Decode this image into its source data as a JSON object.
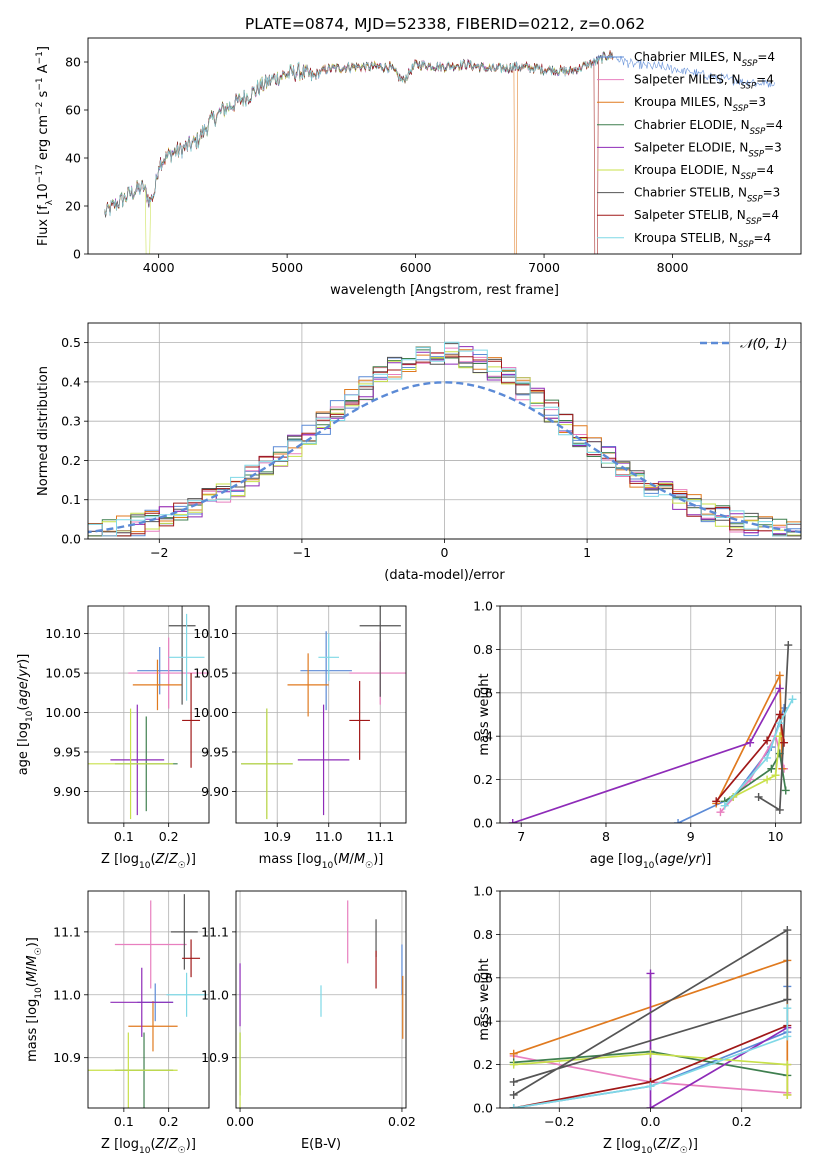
{
  "figure": {
    "title": "PLATE=0874, MJD=52338, FIBERID=0212, z=0.062"
  },
  "colors": {
    "MILES_Chabrier": "#5b8ad6",
    "MILES_Salpeter": "#e87fbf",
    "MILES_Kroupa": "#e07a1f",
    "ELODIE_Chabrier": "#3f7f4f",
    "ELODIE_Salpeter": "#8e2bb8",
    "ELODIE_Kroupa": "#c8e04a",
    "STELIB_Chabrier": "#555555",
    "STELIB_Salpeter": "#a01818",
    "STELIB_Kroupa": "#7fd8e6",
    "normal_curve": "#5b8ad6",
    "grid": "#b0b0b0"
  },
  "chart_data": [
    {
      "id": "spectrum",
      "type": "line",
      "xlabel": "wavelength [Angstrom, rest frame]",
      "ylabel": "Flux [f_λ10^-17 erg cm^-2 s^-1 A^-1]",
      "xlim": [
        3450,
        9000
      ],
      "ylim": [
        0,
        90
      ],
      "xticks": [
        4000,
        5000,
        6000,
        7000,
        8000
      ],
      "yticks": [
        0,
        20,
        40,
        60,
        80
      ],
      "grid": false,
      "legend_position": "upper right",
      "legend": [
        {
          "name": "Chabrier MILES, N_SSP=4",
          "base": "Chabrier MILES, N",
          "sub": "SSP",
          "tail": "=4",
          "color": "#5b8ad6"
        },
        {
          "name": "Salpeter MILES, N_SSP=4",
          "base": "Salpeter MILES, N",
          "sub": "SSP",
          "tail": "=4",
          "color": "#e87fbf"
        },
        {
          "name": "Kroupa MILES, N_SSP=3",
          "base": "Kroupa MILES, N",
          "sub": "SSP",
          "tail": "=3",
          "color": "#e07a1f"
        },
        {
          "name": "Chabrier ELODIE, N_SSP=4",
          "base": "Chabrier ELODIE, N",
          "sub": "SSP",
          "tail": "=4",
          "color": "#3f7f4f"
        },
        {
          "name": "Salpeter ELODIE, N_SSP=3",
          "base": "Salpeter ELODIE, N",
          "sub": "SSP",
          "tail": "=3",
          "color": "#8e2bb8"
        },
        {
          "name": "Kroupa ELODIE, N_SSP=4",
          "base": "Kroupa ELODIE, N",
          "sub": "SSP",
          "tail": "=4",
          "color": "#c8e04a"
        },
        {
          "name": "Chabrier STELIB, N_SSP=3",
          "base": "Chabrier STELIB, N",
          "sub": "SSP",
          "tail": "=3",
          "color": "#555555"
        },
        {
          "name": "Salpeter STELIB, N_SSP=4",
          "base": "Salpeter STELIB, N",
          "sub": "SSP",
          "tail": "=4",
          "color": "#a01818"
        },
        {
          "name": "Kroupa STELIB, N_SSP=4",
          "base": "Kroupa STELIB, N",
          "sub": "SSP",
          "tail": "=4",
          "color": "#7fd8e6"
        }
      ],
      "continuum": [
        [
          3580,
          17
        ],
        [
          3700,
          22
        ],
        [
          3800,
          26
        ],
        [
          3880,
          28
        ],
        [
          3930,
          22
        ],
        [
          3970,
          26
        ],
        [
          4000,
          38
        ],
        [
          4100,
          42
        ],
        [
          4200,
          44
        ],
        [
          4300,
          47
        ],
        [
          4400,
          55
        ],
        [
          4500,
          60
        ],
        [
          4600,
          63
        ],
        [
          4700,
          66
        ],
        [
          4800,
          70
        ],
        [
          4900,
          73
        ],
        [
          5000,
          75
        ],
        [
          5100,
          76
        ],
        [
          5200,
          74
        ],
        [
          5300,
          77
        ],
        [
          5500,
          78
        ],
        [
          5800,
          78
        ],
        [
          5900,
          72
        ],
        [
          6000,
          79
        ],
        [
          6200,
          78
        ],
        [
          6400,
          79
        ],
        [
          6600,
          77
        ],
        [
          6800,
          78
        ],
        [
          7000,
          77
        ],
        [
          7200,
          76
        ],
        [
          7400,
          80
        ],
        [
          7500,
          83
        ],
        [
          7700,
          79
        ],
        [
          7900,
          78
        ],
        [
          8100,
          76
        ],
        [
          8300,
          74
        ],
        [
          8500,
          72
        ],
        [
          8800,
          71
        ]
      ],
      "drops": [
        {
          "from": 3900,
          "to": 3935,
          "color": "#c8e04a"
        },
        {
          "from": 6770,
          "to": 6790,
          "color": "#e07a1f"
        },
        {
          "from": 7390,
          "to": 7420,
          "color": "#a01818"
        }
      ]
    },
    {
      "id": "residuals",
      "type": "histogram",
      "xlabel": "(data-model)/error",
      "ylabel": "Normed distribution",
      "xlim": [
        -2.5,
        2.5
      ],
      "ylim": [
        0,
        0.55
      ],
      "xticks": [
        -2,
        -1,
        0,
        1,
        2
      ],
      "yticks": [
        0.0,
        0.1,
        0.2,
        0.3,
        0.4,
        0.5
      ],
      "grid": true,
      "legend_position": "upper right",
      "legend": [
        {
          "name": "𝒩(0, 1)",
          "style": "dashed",
          "color": "#5b8ad6"
        }
      ],
      "bin_width": 0.1
    },
    {
      "id": "age_vs_Z",
      "type": "scatter",
      "xlabel": "Z [log10(Z/Z☉)]",
      "ylabel": "age [log10(age/yr)]",
      "xlim": [
        0.02,
        0.29
      ],
      "ylim": [
        9.86,
        10.135
      ],
      "xticks": [
        0.1,
        0.2
      ],
      "yticks": [
        9.9,
        9.95,
        10.0,
        10.05,
        10.1
      ],
      "grid": true,
      "points": [
        {
          "color": "#5b8ad6",
          "x": 0.18,
          "y": 10.053,
          "xerr": 0.05,
          "yerr": 0.03
        },
        {
          "color": "#e87fbf",
          "x": 0.2,
          "y": 10.05,
          "xerr": 0.09,
          "yerr": 0.045
        },
        {
          "color": "#e07a1f",
          "x": 0.175,
          "y": 10.035,
          "xerr": 0.055,
          "yerr": 0.032
        },
        {
          "color": "#3f7f4f",
          "x": 0.15,
          "y": 9.935,
          "xerr": 0.07,
          "yerr": 0.06
        },
        {
          "color": "#8e2bb8",
          "x": 0.13,
          "y": 9.94,
          "xerr": 0.06,
          "yerr": 0.07
        },
        {
          "color": "#c8e04a",
          "x": 0.115,
          "y": 9.935,
          "xerr": 0.095,
          "yerr": 0.07
        },
        {
          "color": "#555555",
          "x": 0.23,
          "y": 10.11,
          "xerr": 0.03,
          "yerr": 0.1
        },
        {
          "color": "#a01818",
          "x": 0.25,
          "y": 9.99,
          "xerr": 0.02,
          "yerr": 0.06
        },
        {
          "color": "#7fd8e6",
          "x": 0.24,
          "y": 10.07,
          "xerr": 0.04,
          "yerr": 0.055
        }
      ]
    },
    {
      "id": "age_vs_mass",
      "type": "scatter",
      "xlabel": "mass [log10(M/M☉)]",
      "ylabel": "",
      "xlim": [
        10.82,
        11.15
      ],
      "ylim": [
        9.86,
        10.135
      ],
      "xticks": [
        10.9,
        11.0,
        11.1
      ],
      "yticks": [
        9.9,
        9.95,
        10.0,
        10.05,
        10.1
      ],
      "grid": true,
      "points": [
        {
          "color": "#5b8ad6",
          "x": 10.995,
          "y": 10.053,
          "xerr": 0.05,
          "yerr": 0.05
        },
        {
          "color": "#e87fbf",
          "x": 11.1,
          "y": 10.05,
          "xerr": 0.06,
          "yerr": 0.04
        },
        {
          "color": "#e07a1f",
          "x": 10.96,
          "y": 10.035,
          "xerr": 0.04,
          "yerr": 0.04
        },
        {
          "color": "#3f7f4f",
          "x": 10.88,
          "y": 9.935,
          "xerr": 0.05,
          "yerr": 0.07
        },
        {
          "color": "#8e2bb8",
          "x": 10.99,
          "y": 9.94,
          "xerr": 0.05,
          "yerr": 0.07
        },
        {
          "color": "#c8e04a",
          "x": 10.88,
          "y": 9.935,
          "xerr": 0.05,
          "yerr": 0.07
        },
        {
          "color": "#555555",
          "x": 11.1,
          "y": 10.11,
          "xerr": 0.04,
          "yerr": 0.09
        },
        {
          "color": "#a01818",
          "x": 11.06,
          "y": 9.99,
          "xerr": 0.02,
          "yerr": 0.05
        },
        {
          "color": "#7fd8e6",
          "x": 11.0,
          "y": 10.07,
          "xerr": 0.02,
          "yerr": 0.03
        }
      ]
    },
    {
      "id": "weight_vs_age",
      "type": "line",
      "xlabel": "age [log10(age/yr)]",
      "ylabel": "mass weight",
      "xlim": [
        6.75,
        10.3
      ],
      "ylim": [
        0,
        1.0
      ],
      "xticks": [
        7,
        8,
        9,
        10
      ],
      "yticks": [
        0.0,
        0.2,
        0.4,
        0.6,
        0.8,
        1.0
      ],
      "grid": true,
      "series": [
        {
          "color": "#5b8ad6",
          "points": [
            [
              8.85,
              0.0
            ],
            [
              9.5,
              0.12
            ],
            [
              9.95,
              0.35
            ],
            [
              10.1,
              0.53
            ]
          ]
        },
        {
          "color": "#e87fbf",
          "points": [
            [
              9.35,
              0.05
            ],
            [
              9.7,
              0.2
            ],
            [
              10.0,
              0.4
            ],
            [
              10.1,
              0.25
            ]
          ]
        },
        {
          "color": "#e07a1f",
          "points": [
            [
              9.3,
              0.09
            ],
            [
              10.05,
              0.68
            ],
            [
              10.08,
              0.25
            ]
          ]
        },
        {
          "color": "#3f7f4f",
          "points": [
            [
              9.4,
              0.1
            ],
            [
              9.95,
              0.25
            ],
            [
              10.05,
              0.32
            ],
            [
              10.12,
              0.15
            ]
          ]
        },
        {
          "color": "#8e2bb8",
          "points": [
            [
              6.9,
              0.0
            ],
            [
              9.7,
              0.37
            ],
            [
              10.05,
              0.62
            ]
          ]
        },
        {
          "color": "#c8e04a",
          "points": [
            [
              9.5,
              0.12
            ],
            [
              9.9,
              0.2
            ],
            [
              10.0,
              0.22
            ],
            [
              10.05,
              0.4
            ]
          ]
        },
        {
          "color": "#555555",
          "points": [
            [
              9.8,
              0.12
            ],
            [
              10.05,
              0.06
            ],
            [
              10.15,
              0.82
            ]
          ]
        },
        {
          "color": "#a01818",
          "points": [
            [
              9.3,
              0.1
            ],
            [
              9.9,
              0.38
            ],
            [
              10.05,
              0.5
            ],
            [
              10.1,
              0.37
            ]
          ]
        },
        {
          "color": "#7fd8e6",
          "points": [
            [
              9.4,
              0.08
            ],
            [
              9.9,
              0.3
            ],
            [
              10.05,
              0.46
            ],
            [
              10.2,
              0.57
            ]
          ]
        }
      ]
    },
    {
      "id": "mass_vs_Z",
      "type": "scatter",
      "xlabel": "Z [log10(Z/Z☉)]",
      "ylabel": "mass [log10(M/M☉)]",
      "xlim": [
        0.02,
        0.29
      ],
      "ylim": [
        10.82,
        11.165
      ],
      "xticks": [
        0.1,
        0.2
      ],
      "yticks": [
        10.9,
        11.0,
        11.1
      ],
      "grid": true,
      "points": [
        {
          "color": "#5b8ad6",
          "x": 0.17,
          "y": 10.988,
          "xerr": 0.04,
          "yerr": 0.03
        },
        {
          "color": "#e87fbf",
          "x": 0.16,
          "y": 11.08,
          "xerr": 0.08,
          "yerr": 0.07
        },
        {
          "color": "#e07a1f",
          "x": 0.165,
          "y": 10.95,
          "xerr": 0.055,
          "yerr": 0.04
        },
        {
          "color": "#3f7f4f",
          "x": 0.145,
          "y": 10.88,
          "xerr": 0.065,
          "yerr": 0.06
        },
        {
          "color": "#8e2bb8",
          "x": 0.14,
          "y": 10.988,
          "xerr": 0.07,
          "yerr": 0.055
        },
        {
          "color": "#c8e04a",
          "x": 0.11,
          "y": 10.88,
          "xerr": 0.11,
          "yerr": 0.06
        },
        {
          "color": "#555555",
          "x": 0.235,
          "y": 11.1,
          "xerr": 0.03,
          "yerr": 0.06
        },
        {
          "color": "#a01818",
          "x": 0.25,
          "y": 11.058,
          "xerr": 0.02,
          "yerr": 0.03
        },
        {
          "color": "#7fd8e6",
          "x": 0.24,
          "y": 11.0,
          "xerr": 0.045,
          "yerr": 0.035
        }
      ]
    },
    {
      "id": "mass_vs_EBV",
      "type": "scatter",
      "xlabel": "E(B-V)",
      "ylabel": "",
      "xlim": [
        -0.0005,
        0.0205
      ],
      "ylim": [
        10.82,
        11.165
      ],
      "xticks": [
        0.0,
        0.02
      ],
      "yticks": [
        10.9,
        11.0,
        11.1
      ],
      "grid": true,
      "points": [
        {
          "color": "#5b8ad6",
          "x": 0.02,
          "y": 11.04,
          "xerr": 0,
          "yerr": 0.04
        },
        {
          "color": "#e87fbf",
          "x": 0.0133,
          "y": 11.1,
          "xerr": 0,
          "yerr": 0.05
        },
        {
          "color": "#e07a1f",
          "x": 0.0201,
          "y": 10.98,
          "xerr": 0,
          "yerr": 0.05
        },
        {
          "color": "#3f7f4f",
          "x": 0.0,
          "y": 10.89,
          "xerr": 0,
          "yerr": 0.05
        },
        {
          "color": "#8e2bb8",
          "x": 0.0,
          "y": 11.0,
          "xerr": 0,
          "yerr": 0.05
        },
        {
          "color": "#c8e04a",
          "x": 0.0,
          "y": 10.88,
          "xerr": 0,
          "yerr": 0.06
        },
        {
          "color": "#555555",
          "x": 0.0168,
          "y": 11.09,
          "xerr": 0,
          "yerr": 0.03
        },
        {
          "color": "#a01818",
          "x": 0.0168,
          "y": 11.04,
          "xerr": 0,
          "yerr": 0.03
        },
        {
          "color": "#7fd8e6",
          "x": 0.01,
          "y": 10.99,
          "xerr": 0,
          "yerr": 0.025
        }
      ]
    },
    {
      "id": "weight_vs_Z",
      "type": "line",
      "xlabel": "Z [log10(Z/Z☉)]",
      "ylabel": "mass weight",
      "xlim": [
        -0.33,
        0.33
      ],
      "ylim": [
        0,
        1.0
      ],
      "xticks": [
        -0.2,
        0.0,
        0.2
      ],
      "yticks": [
        0.0,
        0.2,
        0.4,
        0.6,
        0.8,
        1.0
      ],
      "grid": true,
      "series": [
        {
          "color": "#5b8ad6",
          "points": [
            [
              -0.3,
              0.0
            ],
            [
              0.0,
              0.1
            ],
            [
              0.3,
              0.35
            ],
            [
              0.3,
              0.56
            ]
          ]
        },
        {
          "color": "#e87fbf",
          "points": [
            [
              -0.3,
              0.24
            ],
            [
              0.0,
              0.12
            ],
            [
              0.3,
              0.07
            ],
            [
              0.3,
              0.2
            ]
          ]
        },
        {
          "color": "#e07a1f",
          "points": [
            [
              -0.3,
              0.25
            ],
            [
              0.3,
              0.68
            ],
            [
              0.3,
              0.06
            ]
          ]
        },
        {
          "color": "#3f7f4f",
          "points": [
            [
              -0.3,
              0.21
            ],
            [
              0.0,
              0.26
            ],
            [
              0.3,
              0.15
            ]
          ]
        },
        {
          "color": "#8e2bb8",
          "points": [
            [
              0.0,
              0.62
            ],
            [
              0.0,
              0.0
            ],
            [
              0.3,
              0.37
            ]
          ]
        },
        {
          "color": "#c8e04a",
          "points": [
            [
              -0.3,
              0.2
            ],
            [
              0.0,
              0.25
            ],
            [
              0.3,
              0.2
            ],
            [
              0.3,
              0.06
            ]
          ]
        },
        {
          "color": "#555555",
          "points": [
            [
              -0.3,
              0.06
            ],
            [
              0.3,
              0.82
            ],
            [
              0.3,
              0.5
            ],
            [
              -0.3,
              0.12
            ]
          ]
        },
        {
          "color": "#a01818",
          "points": [
            [
              -0.3,
              0.0
            ],
            [
              0.0,
              0.12
            ],
            [
              0.3,
              0.38
            ]
          ]
        },
        {
          "color": "#7fd8e6",
          "points": [
            [
              -0.3,
              0.0
            ],
            [
              0.0,
              0.1
            ],
            [
              0.3,
              0.33
            ],
            [
              0.3,
              0.46
            ]
          ]
        }
      ]
    }
  ]
}
